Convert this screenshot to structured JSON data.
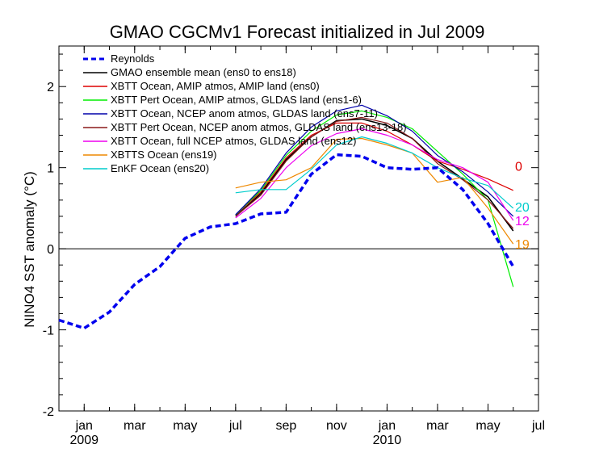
{
  "chart_data": {
    "type": "line",
    "title": "GMAO CGCMv1 Forecast initialized in Jul 2009",
    "xlabel": "",
    "ylabel": "NINO4 SST anomaly (°C)",
    "x_range": [
      "2008-12",
      "2010-07"
    ],
    "ylim": [
      -2,
      2.5
    ],
    "grid": false,
    "legend_position": "top-left",
    "y_ticks": [
      "2",
      "1",
      "0",
      "-1",
      "-2"
    ],
    "x_ticks": [
      {
        "month": "2009-01",
        "label": "jan",
        "year_label": "2009"
      },
      {
        "month": "2009-03",
        "label": "mar",
        "year_label": ""
      },
      {
        "month": "2009-05",
        "label": "may",
        "year_label": ""
      },
      {
        "month": "2009-07",
        "label": "jul",
        "year_label": ""
      },
      {
        "month": "2009-09",
        "label": "sep",
        "year_label": ""
      },
      {
        "month": "2009-11",
        "label": "nov",
        "year_label": ""
      },
      {
        "month": "2010-01",
        "label": "jan",
        "year_label": "2010"
      },
      {
        "month": "2010-03",
        "label": "mar",
        "year_label": ""
      },
      {
        "month": "2010-05",
        "label": "may",
        "year_label": ""
      },
      {
        "month": "2010-07",
        "label": "jul",
        "year_label": ""
      }
    ],
    "reference_line": 0,
    "series": [
      {
        "name": "Reynolds",
        "color": "#0000ee",
        "dashed": true,
        "width": 3.5,
        "x": [
          "2008-12",
          "2009-01",
          "2009-02",
          "2009-03",
          "2009-04",
          "2009-05",
          "2009-06",
          "2009-07",
          "2009-08",
          "2009-09",
          "2009-10",
          "2009-11",
          "2009-12",
          "2010-01",
          "2010-02",
          "2010-03",
          "2010-04",
          "2010-05",
          "2010-06"
        ],
        "values": [
          -0.88,
          -0.98,
          -0.78,
          -0.44,
          -0.22,
          0.13,
          0.27,
          0.31,
          0.43,
          0.45,
          0.92,
          1.16,
          1.14,
          1.0,
          0.98,
          1.0,
          0.73,
          0.31,
          -0.22
        ]
      },
      {
        "name": "GMAO ensemble mean (ens0 to ens18)",
        "color": "#000000",
        "width": 1.6,
        "x": [
          "2009-07",
          "2009-08",
          "2009-09",
          "2009-10",
          "2009-11",
          "2009-12",
          "2010-01",
          "2010-02",
          "2010-03",
          "2010-04",
          "2010-05",
          "2010-06"
        ],
        "values": [
          0.4,
          0.68,
          1.1,
          1.38,
          1.58,
          1.6,
          1.52,
          1.36,
          1.08,
          0.86,
          0.64,
          0.22
        ]
      },
      {
        "name": "XBTT Ocean, AMIP atmos, AMIP land (ens0)",
        "color": "#dd0000",
        "x": [
          "2009-07",
          "2009-08",
          "2009-09",
          "2009-10",
          "2009-11",
          "2009-12",
          "2010-01",
          "2010-02",
          "2010-03",
          "2010-04",
          "2010-05",
          "2010-06"
        ],
        "values": [
          0.42,
          0.7,
          1.12,
          1.4,
          1.55,
          1.55,
          1.45,
          1.28,
          1.08,
          0.98,
          0.86,
          0.72
        ]
      },
      {
        "name": "XBTT Pert Ocean, AMIP atmos, GLDAS land (ens1-6)",
        "color": "#00ee00",
        "x": [
          "2009-07",
          "2009-08",
          "2009-09",
          "2009-10",
          "2009-11",
          "2009-12",
          "2010-01",
          "2010-02",
          "2010-03",
          "2010-04",
          "2010-05",
          "2010-06"
        ],
        "values": [
          0.42,
          0.72,
          1.15,
          1.45,
          1.65,
          1.7,
          1.62,
          1.48,
          1.2,
          0.92,
          0.6,
          -0.47
        ]
      },
      {
        "name": "XBTT Ocean, NCEP anom atmos, GLDAS land (ens7-11)",
        "color": "#0000aa",
        "x": [
          "2009-07",
          "2009-08",
          "2009-09",
          "2009-10",
          "2009-11",
          "2009-12",
          "2010-01",
          "2010-02",
          "2010-03",
          "2010-04",
          "2010-05",
          "2010-06"
        ],
        "values": [
          0.42,
          0.74,
          1.18,
          1.5,
          1.7,
          1.77,
          1.64,
          1.45,
          1.15,
          0.95,
          0.7,
          0.4
        ]
      },
      {
        "name": "XBTT Pert Ocean, NCEP anom atmos, GLDAS land (ens13-18)",
        "color": "#8b1a1a",
        "x": [
          "2009-07",
          "2009-08",
          "2009-09",
          "2009-10",
          "2009-11",
          "2009-12",
          "2010-01",
          "2010-02",
          "2010-03",
          "2010-04",
          "2010-05",
          "2010-06"
        ],
        "values": [
          0.4,
          0.66,
          1.08,
          1.38,
          1.57,
          1.62,
          1.55,
          1.36,
          1.05,
          0.85,
          0.6,
          0.25
        ]
      },
      {
        "name": "XBTT Ocean, full NCEP atmos, GLDAS land (ens12)",
        "color": "#ee00ee",
        "x": [
          "2009-07",
          "2009-08",
          "2009-09",
          "2009-10",
          "2009-11",
          "2009-12",
          "2010-01",
          "2010-02",
          "2010-03",
          "2010-04",
          "2010-05",
          "2010-06"
        ],
        "values": [
          0.38,
          0.62,
          1.0,
          1.27,
          1.42,
          1.48,
          1.4,
          1.28,
          1.1,
          1.0,
          0.82,
          0.35
        ]
      },
      {
        "name": "XBTTS Ocean (ens19)",
        "color": "#ee8800",
        "x": [
          "2009-07",
          "2009-08",
          "2009-09",
          "2009-10",
          "2009-11",
          "2009-12",
          "2010-01",
          "2010-02",
          "2010-03",
          "2010-04",
          "2010-05",
          "2010-06"
        ],
        "values": [
          0.75,
          0.82,
          0.85,
          1.0,
          1.35,
          1.36,
          1.28,
          1.18,
          0.82,
          0.88,
          0.5,
          0.06
        ]
      },
      {
        "name": "EnKF Ocean (ens20)",
        "color": "#00cccc",
        "x": [
          "2009-07",
          "2009-08",
          "2009-09",
          "2009-10",
          "2009-11",
          "2009-12",
          "2010-01",
          "2010-02",
          "2010-03",
          "2010-04",
          "2010-05",
          "2010-06"
        ],
        "values": [
          0.69,
          0.73,
          0.73,
          0.98,
          1.28,
          1.38,
          1.3,
          1.18,
          1.0,
          0.87,
          0.78,
          0.5
        ]
      }
    ],
    "end_labels": [
      {
        "text": "0",
        "color": "#dd0000",
        "y": 1.02
      },
      {
        "text": "20",
        "color": "#00cccc",
        "y": 0.52
      },
      {
        "text": "12",
        "color": "#ee00ee",
        "y": 0.35
      },
      {
        "text": "19",
        "color": "#ee8800",
        "y": 0.06
      }
    ]
  }
}
